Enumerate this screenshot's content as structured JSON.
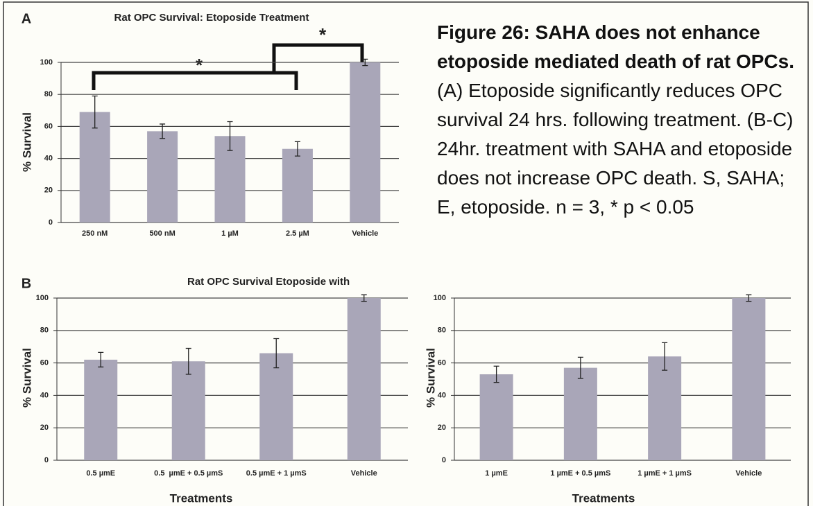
{
  "caption": {
    "heading": "Figure 26: SAHA does not enhance etoposide mediated death of rat OPCs.",
    "text": "(A) Etoposide significantly reduces OPC survival 24 hrs. following treatment. (B-C) 24hr. treatment with SAHA and etoposide does not increase OPC death. S, SAHA; E, etoposide. n = 3,  * p < 0.05"
  },
  "chart_data": [
    {
      "type": "bar",
      "panel": "A",
      "title": "Rat OPC Survival: Etoposide Treatment",
      "y_label": "% Survival",
      "categories": [
        "250 nM",
        "500 nM",
        "1 µM",
        "2.5 µM",
        "Vehicle"
      ],
      "values": [
        69,
        57,
        54,
        46,
        100
      ],
      "errors": [
        10,
        4.5,
        9,
        4.5,
        2
      ],
      "color": "#a9a6b8",
      "ylim": [
        0,
        100
      ],
      "yticks": [
        0,
        20,
        40,
        60,
        80,
        100
      ],
      "grid": true,
      "annotations": [
        "*",
        "*"
      ]
    },
    {
      "type": "bar",
      "panel": "B",
      "title": "Rat OPC Survival Etoposide with",
      "y_label": "% Survival",
      "x_label": "Treatments",
      "categories": [
        "0.5 µmE",
        "0.5  µmE + 0.5 µmS",
        "0.5 µmE + 1 µmS",
        "Vehicle"
      ],
      "values": [
        62,
        61,
        66,
        100
      ],
      "errors": [
        4.5,
        8,
        9,
        2
      ],
      "color": "#a9a6b8",
      "ylim": [
        0,
        100
      ],
      "yticks": [
        0,
        20,
        40,
        60,
        80,
        100
      ],
      "grid": true
    },
    {
      "type": "bar",
      "y_label": "% Survival",
      "x_label": "Treatments",
      "categories": [
        "1 µmE",
        "1 µmE + 0.5 µmS",
        "1 µmE + 1 µmS",
        "Vehicle"
      ],
      "values": [
        53,
        57,
        64,
        100
      ],
      "errors": [
        5,
        6.5,
        8.5,
        2
      ],
      "color": "#a9a6b8",
      "ylim": [
        0,
        100
      ],
      "yticks": [
        0,
        20,
        40,
        60,
        80,
        100
      ],
      "grid": true
    }
  ]
}
